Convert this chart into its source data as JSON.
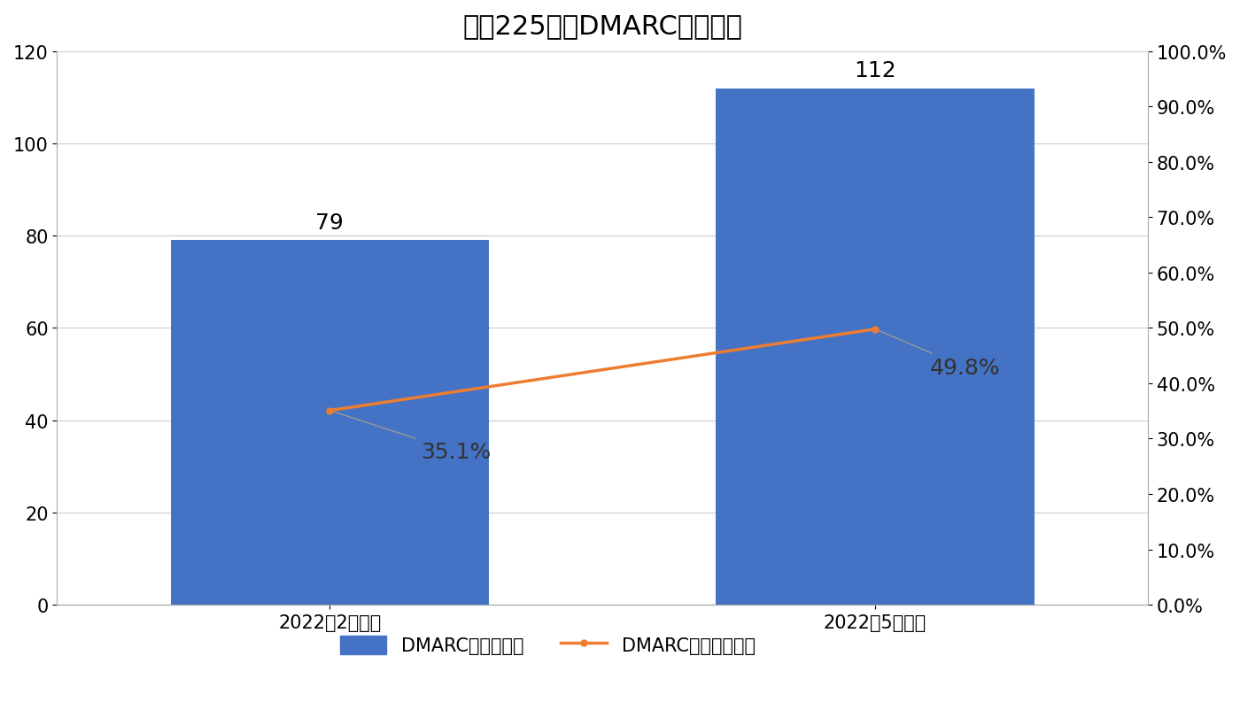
{
  "title": "日経225企楮DMARC導入状況",
  "categories": [
    "2022年2月調査",
    "2022年5月調査"
  ],
  "bar_values": [
    79,
    112
  ],
  "bar_color": "#4472C4",
  "line_values_pct": [
    0.351,
    0.498
  ],
  "line_labels": [
    "35.1%",
    "49.8%"
  ],
  "line_color": "#ED7D31",
  "left_ylim": [
    0,
    120
  ],
  "left_yticks": [
    0,
    20,
    40,
    60,
    80,
    100,
    120
  ],
  "right_ylim": [
    0.0,
    1.0
  ],
  "right_yticks": [
    0.0,
    0.1,
    0.2,
    0.3,
    0.4,
    0.5,
    0.6,
    0.7,
    0.8,
    0.9,
    1.0
  ],
  "right_yticklabels": [
    "0.0%",
    "10.0%",
    "20.0%",
    "30.0%",
    "40.0%",
    "50.0%",
    "60.0%",
    "70.0%",
    "80.0%",
    "90.0%",
    "100.0%"
  ],
  "legend_bar_label": "DMARC導入企楮数",
  "legend_line_label": "DMARC導入企楮割合",
  "bar_width": 0.35,
  "bg_color": "#FFFFFF",
  "grid_color": "#CCCCCC",
  "title_fontsize": 22,
  "axis_fontsize": 15,
  "legend_fontsize": 15,
  "annot_fontsize": 18
}
